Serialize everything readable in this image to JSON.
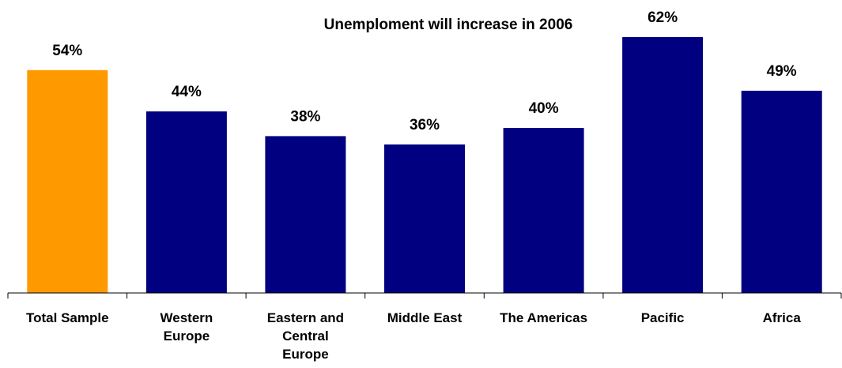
{
  "chart_data": {
    "type": "bar",
    "title": "Unemploment will increase in 2006",
    "categories": [
      "Total Sample",
      "Western Europe",
      "Eastern and Central Europe",
      "Middle East",
      "The Americas",
      "Pacific",
      "Africa"
    ],
    "category_label_lines": [
      [
        "Total Sample"
      ],
      [
        "Western",
        "Europe"
      ],
      [
        "Eastern and",
        "Central",
        "Europe"
      ],
      [
        "Middle East"
      ],
      [
        "The Americas"
      ],
      [
        "Pacific"
      ],
      [
        "Africa"
      ]
    ],
    "values": [
      54,
      44,
      38,
      36,
      40,
      62,
      49
    ],
    "value_labels": [
      "54%",
      "44%",
      "38%",
      "36%",
      "40%",
      "62%",
      "49%"
    ],
    "unit": "%",
    "xlabel": "",
    "ylabel": "",
    "ylim": [
      0,
      62
    ],
    "grid": false,
    "legend": "none",
    "colors": {
      "highlight": "#FF9900",
      "default": "#000080"
    },
    "highlight_index": 0
  }
}
